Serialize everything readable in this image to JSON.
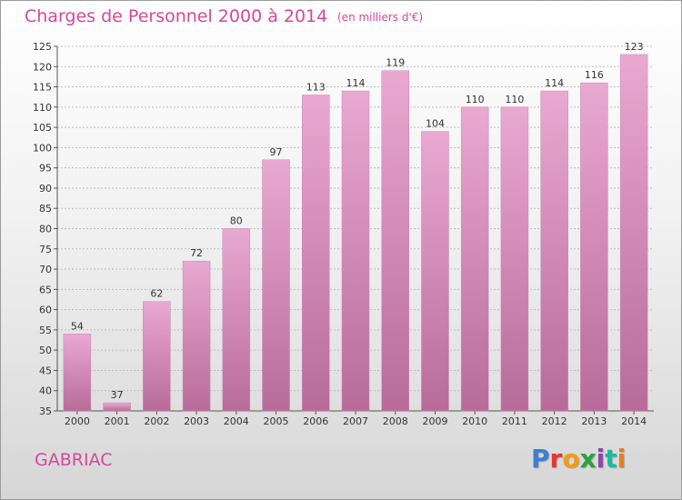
{
  "header": {
    "title": "Charges de Personnel 2000 à 2014",
    "subtitle": "(en milliers d'€)"
  },
  "footer": {
    "commune": "GABRIAC",
    "logo_text": "Proxiti",
    "logo_colors": [
      "#3b7fd0",
      "#e8352e",
      "#f39c12",
      "#2ea043",
      "#8e44ad",
      "#1abc9c",
      "#e67e22"
    ]
  },
  "colors": {
    "title": "#d6479b",
    "bar_light": "#e9a9d1",
    "bar_dark": "#b86b99",
    "gridline": "#bdbdbd"
  },
  "chart_data": {
    "type": "bar",
    "title": "Charges de Personnel 2000 à 2014",
    "subtitle": "(en milliers d'€)",
    "xlabel": "",
    "ylabel": "",
    "categories": [
      "2000",
      "2001",
      "2002",
      "2003",
      "2004",
      "2005",
      "2006",
      "2007",
      "2008",
      "2009",
      "2010",
      "2011",
      "2012",
      "2013",
      "2014"
    ],
    "values": [
      54,
      37,
      62,
      72,
      80,
      97,
      113,
      114,
      119,
      104,
      110,
      110,
      114,
      116,
      123
    ],
    "ylim": [
      35,
      125
    ],
    "yticks": [
      35,
      40,
      45,
      50,
      55,
      60,
      65,
      70,
      75,
      80,
      85,
      90,
      95,
      100,
      105,
      110,
      115,
      120,
      125
    ],
    "grid": true,
    "legend": "none"
  }
}
